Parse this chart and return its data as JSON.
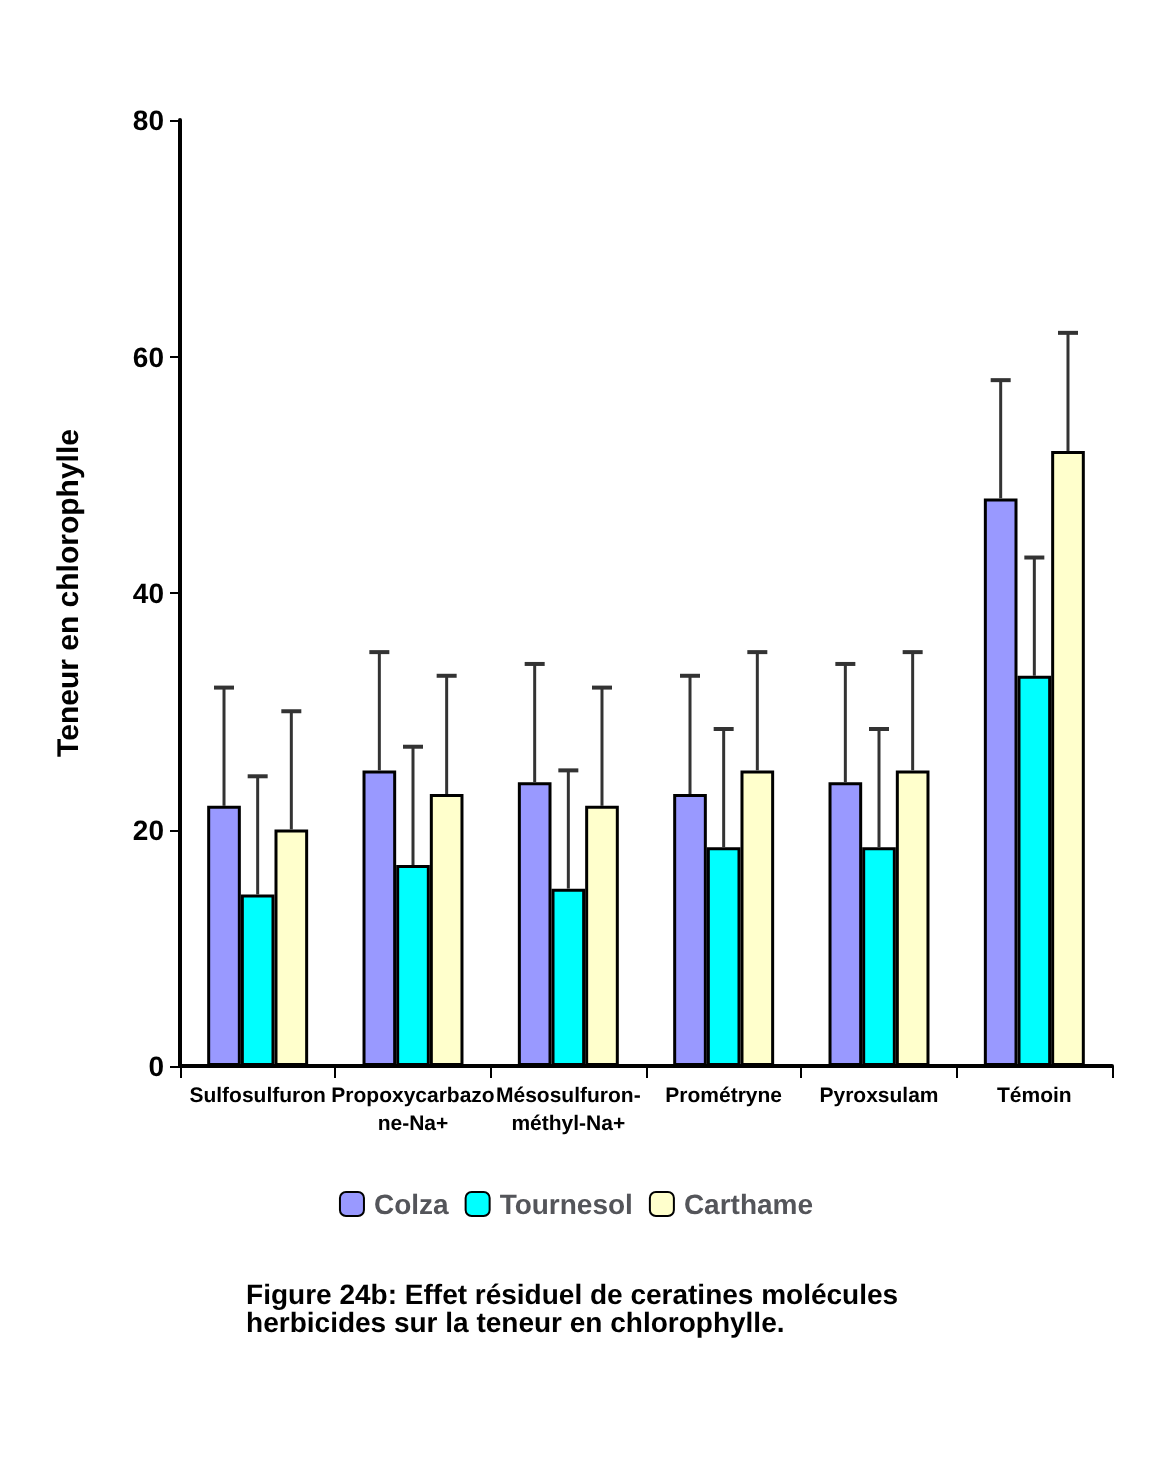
{
  "chart_data": {
    "type": "bar",
    "ylabel": "Teneur en chlorophylle",
    "categories": [
      "Sulfosulfuron",
      "Propoxycarbazone-Na+",
      "Mésosulfuron-méthyl-Na+",
      "Prométryne",
      "Pyroxsulam",
      "Témoin"
    ],
    "series": [
      {
        "name": "Colza",
        "color": "#9999ff",
        "values": [
          22,
          25,
          24,
          23,
          24,
          48
        ],
        "errors": [
          10,
          10,
          10,
          10,
          10,
          10
        ]
      },
      {
        "name": "Tournesol",
        "color": "#00ffff",
        "values": [
          14.5,
          17,
          15,
          18.5,
          18.5,
          33
        ],
        "errors": [
          10,
          10,
          10,
          10,
          10,
          10
        ]
      },
      {
        "name": "Carthame",
        "color": "#ffffcc",
        "values": [
          20,
          23,
          22,
          25,
          25,
          52
        ],
        "errors": [
          10,
          10,
          10,
          10,
          10,
          10
        ]
      }
    ],
    "ylim": [
      0,
      80
    ],
    "yticks": [
      0,
      20,
      40,
      60,
      80
    ],
    "grid": false,
    "legend": "bottom",
    "annotations": [
      "Figure 24b: Effet résiduel de ceratines molécules herbicides sur la teneur en chlorophylle."
    ]
  }
}
